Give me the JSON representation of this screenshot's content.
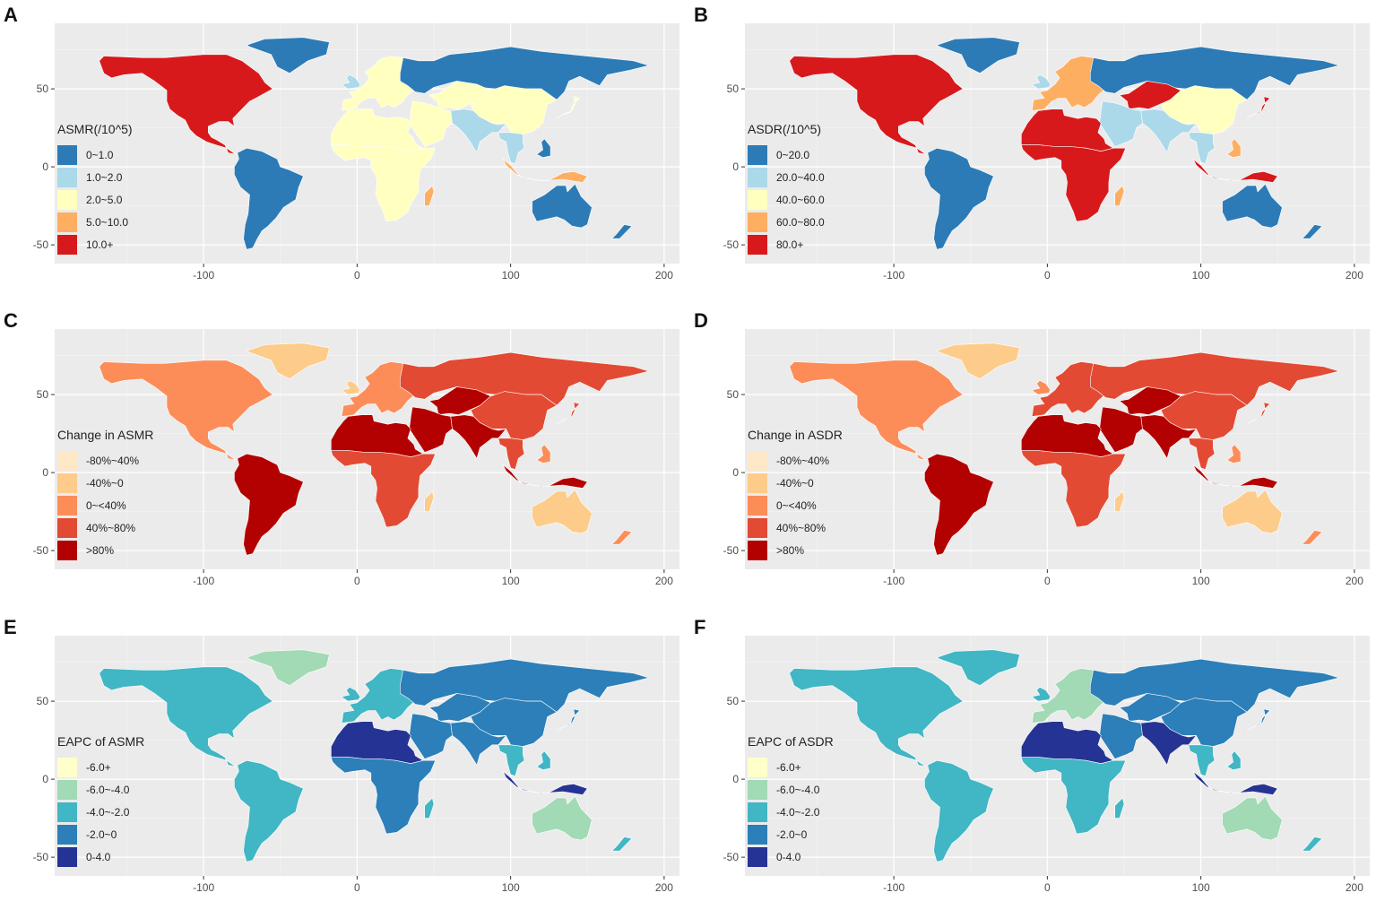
{
  "figure": {
    "x_ticks": [
      "-100",
      "0",
      "100",
      "200"
    ],
    "y_ticks": [
      "50",
      "0",
      "-50"
    ],
    "panels": [
      {
        "letter": "A",
        "legend_title": "ASMR(/10^5)",
        "legend": [
          {
            "label": "0~1.0",
            "color": "#2c7bb6"
          },
          {
            "label": "1.0~2.0",
            "color": "#abd9e9"
          },
          {
            "label": "2.0~5.0",
            "color": "#ffffbf"
          },
          {
            "label": "5.0~10.0",
            "color": "#fdae61"
          },
          {
            "label": "10.0+",
            "color": "#d7191c"
          }
        ]
      },
      {
        "letter": "B",
        "legend_title": "ASDR(/10^5)",
        "legend": [
          {
            "label": "0~20.0",
            "color": "#2c7bb6"
          },
          {
            "label": "20.0~40.0",
            "color": "#abd9e9"
          },
          {
            "label": "40.0~60.0",
            "color": "#ffffbf"
          },
          {
            "label": "60.0~80.0",
            "color": "#fdae61"
          },
          {
            "label": "80.0+",
            "color": "#d7191c"
          }
        ]
      },
      {
        "letter": "C",
        "legend_title": "Change in ASMR",
        "legend": [
          {
            "label": "-80%~40%",
            "color": "#fee8c8"
          },
          {
            "label": "-40%~0",
            "color": "#fdcc8a"
          },
          {
            "label": "0~<40%",
            "color": "#fc8d59"
          },
          {
            "label": "40%~80%",
            "color": "#e34a33"
          },
          {
            "label": ">80%",
            "color": "#b30000"
          }
        ]
      },
      {
        "letter": "D",
        "legend_title": "Change in ASDR",
        "legend": [
          {
            "label": "-80%~40%",
            "color": "#fee8c8"
          },
          {
            "label": "-40%~0",
            "color": "#fdcc8a"
          },
          {
            "label": "0~<40%",
            "color": "#fc8d59"
          },
          {
            "label": "40%~80%",
            "color": "#e34a33"
          },
          {
            "label": ">80%",
            "color": "#b30000"
          }
        ]
      },
      {
        "letter": "E",
        "legend_title": "EAPC of ASMR",
        "legend": [
          {
            "label": "-6.0+",
            "color": "#ffffcc"
          },
          {
            "label": "-6.0~-4.0",
            "color": "#a1dab4"
          },
          {
            "label": "-4.0~-2.0",
            "color": "#41b6c4"
          },
          {
            "label": "-2.0~0",
            "color": "#2c7fb8"
          },
          {
            "label": "0-4.0",
            "color": "#253494"
          }
        ]
      },
      {
        "letter": "F",
        "legend_title": "EAPC of ASDR",
        "legend": [
          {
            "label": "-6.0+",
            "color": "#ffffcc"
          },
          {
            "label": "-6.0~-4.0",
            "color": "#a1dab4"
          },
          {
            "label": "-4.0~-2.0",
            "color": "#41b6c4"
          },
          {
            "label": "-2.0~0",
            "color": "#2c7fb8"
          },
          {
            "label": "0-4.0",
            "color": "#253494"
          }
        ]
      }
    ],
    "region_fill_index": [
      [
        0,
        4,
        0,
        2,
        1,
        0,
        2,
        2,
        1,
        2,
        1,
        2,
        2,
        3,
        2,
        3,
        0,
        0,
        0
      ],
      [
        0,
        4,
        0,
        3,
        1,
        0,
        4,
        1,
        1,
        2,
        1,
        4,
        4,
        3,
        4,
        4,
        0,
        0,
        3
      ],
      [
        1,
        2,
        4,
        2,
        1,
        3,
        4,
        4,
        4,
        3,
        3,
        4,
        3,
        1,
        3,
        4,
        1,
        2,
        2
      ],
      [
        1,
        2,
        4,
        3,
        2,
        3,
        4,
        4,
        4,
        3,
        3,
        4,
        3,
        1,
        3,
        4,
        1,
        2,
        2
      ],
      [
        1,
        2,
        2,
        2,
        2,
        3,
        3,
        3,
        3,
        3,
        2,
        4,
        3,
        2,
        3,
        4,
        1,
        2,
        2
      ],
      [
        2,
        2,
        2,
        1,
        2,
        3,
        3,
        3,
        4,
        3,
        2,
        4,
        2,
        2,
        3,
        4,
        1,
        2,
        2
      ]
    ]
  }
}
